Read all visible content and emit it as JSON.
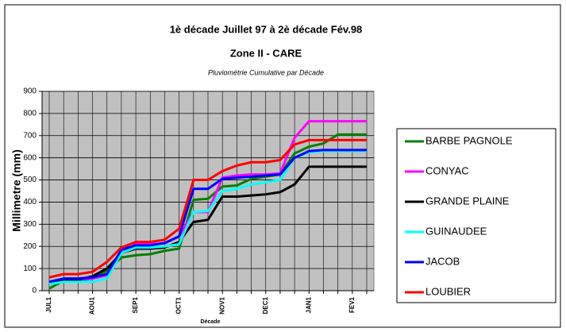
{
  "chart_data": {
    "type": "line",
    "title": "1è décade Juillet 97 à 2è décade  Fév.98",
    "subtitle": "Zone II - CARE",
    "caption": "Pluviométrie Cumulative par Décade",
    "y_label": "Millimetre (mm)",
    "x_label": "Décade",
    "categories": [
      "JUL1",
      null,
      null,
      "AOU1",
      null,
      null,
      "SEP1",
      null,
      null,
      "OCT1",
      null,
      null,
      "NOV1",
      null,
      null,
      "DEC1",
      null,
      null,
      "JAN1",
      null,
      null,
      "FEV1",
      null
    ],
    "series": [
      {
        "name": "BARBE PAGNOLE",
        "color": "#008000",
        "values": [
          10,
          45,
          45,
          55,
          90,
          150,
          160,
          165,
          180,
          190,
          410,
          415,
          470,
          475,
          505,
          515,
          525,
          620,
          650,
          665,
          705,
          705,
          705
        ]
      },
      {
        "name": "CONYAC",
        "color": "#ff00ff",
        "values": [
          30,
          50,
          50,
          55,
          70,
          170,
          210,
          210,
          215,
          245,
          355,
          355,
          510,
          520,
          525,
          525,
          530,
          690,
          765,
          765,
          765,
          765,
          765
        ]
      },
      {
        "name": "GRANDE PLAINE",
        "color": "#000000",
        "values": [
          35,
          50,
          50,
          65,
          100,
          170,
          190,
          190,
          195,
          220,
          310,
          320,
          425,
          425,
          430,
          435,
          445,
          480,
          560,
          560,
          560,
          560,
          560
        ]
      },
      {
        "name": "GUINAUDEE",
        "color": "#00ffff",
        "values": [
          30,
          40,
          40,
          40,
          55,
          170,
          195,
          195,
          200,
          210,
          355,
          360,
          450,
          460,
          480,
          490,
          500,
          600,
          625,
          630,
          630,
          630,
          630
        ]
      },
      {
        "name": "JACOB",
        "color": "#0000ff",
        "values": [
          40,
          55,
          55,
          60,
          75,
          185,
          205,
          205,
          215,
          245,
          460,
          460,
          505,
          510,
          515,
          520,
          525,
          600,
          630,
          635,
          635,
          635,
          635
        ]
      },
      {
        "name": "LOUBIER",
        "color": "#ff0000",
        "values": [
          60,
          75,
          75,
          85,
          130,
          195,
          220,
          220,
          230,
          280,
          500,
          500,
          540,
          565,
          580,
          580,
          590,
          660,
          680,
          680,
          680,
          680,
          680
        ]
      }
    ],
    "ylim": [
      0,
      900
    ],
    "yticks": [
      0,
      100,
      200,
      300,
      400,
      500,
      600,
      700,
      800,
      900
    ],
    "grid": true,
    "legend": "right"
  }
}
